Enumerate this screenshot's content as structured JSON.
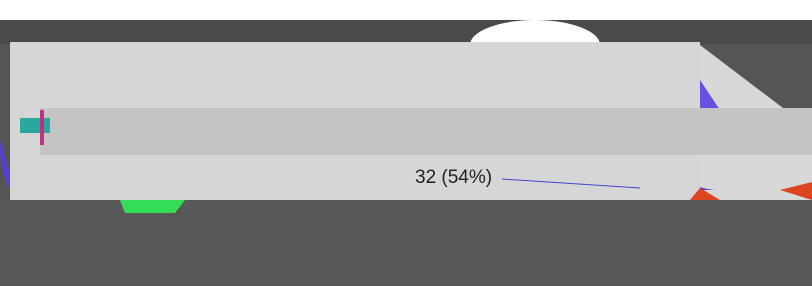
{
  "label": "32 (54%)"
}
